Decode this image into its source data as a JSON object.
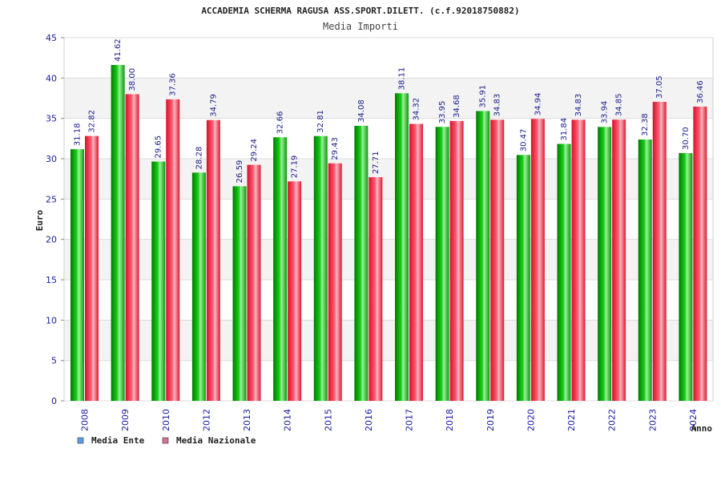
{
  "chart_data": {
    "type": "bar",
    "title": "ACCADEMIA SCHERMA RAGUSA ASS.SPORT.DILETT. (c.f.92018750882)",
    "subtitle": "Media Importi",
    "xlabel": "Anno",
    "ylabel": "Euro",
    "ylim": [
      0,
      45
    ],
    "yticks": [
      0,
      5,
      10,
      15,
      20,
      25,
      30,
      35,
      40,
      45
    ],
    "categories": [
      "2008",
      "2009",
      "2010",
      "2012",
      "2013",
      "2014",
      "2015",
      "2016",
      "2017",
      "2018",
      "2019",
      "2020",
      "2021",
      "2022",
      "2023",
      "2024"
    ],
    "series": [
      {
        "name": "Media Ente",
        "color": "#11bb11",
        "legend_color": "#5aa0e6",
        "values": [
          31.18,
          41.62,
          29.65,
          28.28,
          26.59,
          32.66,
          32.81,
          34.08,
          38.11,
          33.95,
          35.91,
          30.47,
          31.84,
          33.94,
          32.38,
          30.7
        ]
      },
      {
        "name": "Media Nazionale",
        "color": "#e8203a",
        "legend_color": "#d9709a",
        "values": [
          32.82,
          38.0,
          37.36,
          34.79,
          29.24,
          27.19,
          29.43,
          27.71,
          34.32,
          34.68,
          34.83,
          34.94,
          34.83,
          34.85,
          37.05,
          36.46
        ]
      }
    ],
    "data_label_format": "2 decimals",
    "grid": true,
    "legend_position": "bottom-left"
  }
}
